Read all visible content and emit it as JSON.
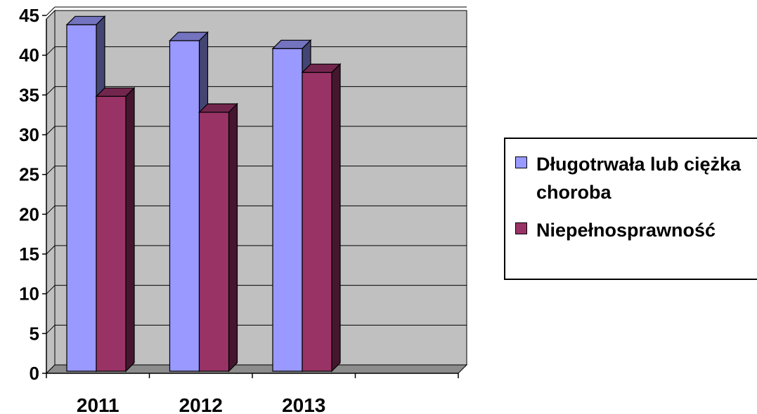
{
  "chart_data": {
    "type": "bar",
    "categories": [
      "2011",
      "2012",
      "2013",
      ""
    ],
    "series": [
      {
        "name": "Długotrwała lub ciężka choroba",
        "values": [
          44,
          42,
          41,
          null
        ],
        "color": "#9999ff"
      },
      {
        "name": "Niepełnosprawność",
        "values": [
          35,
          33,
          38,
          null
        ],
        "color": "#993366"
      }
    ],
    "ylim": [
      0,
      45
    ],
    "yticks": [
      "0",
      "5",
      "10",
      "15",
      "20",
      "25",
      "30",
      "35",
      "40",
      "45"
    ],
    "grid": true,
    "style": "3d-column",
    "plot_background": "#c0c0c0",
    "legend": {
      "position": "right"
    }
  }
}
